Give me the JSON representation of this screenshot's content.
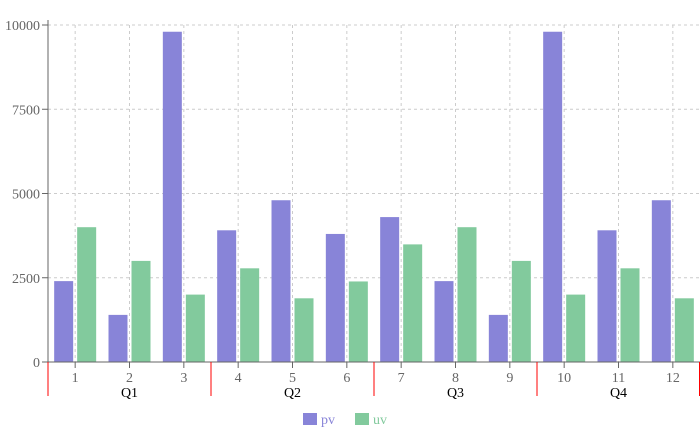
{
  "chart_data": {
    "type": "bar",
    "categories": [
      "1",
      "2",
      "3",
      "4",
      "5",
      "6",
      "7",
      "8",
      "9",
      "10",
      "11",
      "12"
    ],
    "groups": [
      "Q1",
      "Q2",
      "Q3",
      "Q4"
    ],
    "series": [
      {
        "name": "pv",
        "color": "#8884d8",
        "values": [
          2400,
          1398,
          9800,
          3908,
          4800,
          3800,
          4300,
          2400,
          1398,
          9800,
          3908,
          4800
        ]
      },
      {
        "name": "uv",
        "color": "#82ca9d",
        "values": [
          4000,
          3000,
          2000,
          2780,
          1890,
          2390,
          3490,
          4000,
          3000,
          2000,
          2780,
          1890
        ]
      }
    ],
    "yticks": [
      "0",
      "2500",
      "5000",
      "7500",
      "10000"
    ],
    "ylim": [
      0,
      10000
    ],
    "grid": true,
    "group_separator_color": "#ff0000",
    "legend_position": "bottom-center"
  }
}
